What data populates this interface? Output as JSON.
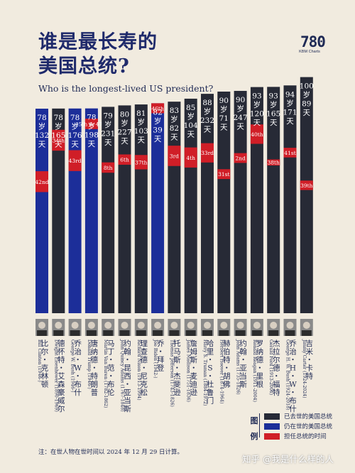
{
  "title_line1": "谁是最长寿的",
  "title_line2": "美国总统?",
  "subtitle": "Who is the longest-lived US president?",
  "logo": {
    "mark": "780",
    "text": "KBM Charts"
  },
  "legend": {
    "header": [
      "图",
      "例"
    ],
    "items": [
      {
        "label": "已去世的美国总统",
        "color": "#272a36"
      },
      {
        "label": "仍在世的美国总统",
        "color": "#1c2e99"
      },
      {
        "label": "担任总统的时间",
        "color": "#d01e27"
      }
    ]
  },
  "footnote": "注：在世人物在世时间以 2024 年 12 月 29 日计算。",
  "watermark": "知乎 @我是什么样的人",
  "colors": {
    "deceased": "#272a36",
    "living": "#1c2e99",
    "term": "#d01e27"
  },
  "chart_data": {
    "type": "bar",
    "title": "谁是最长寿的美国总统?",
    "subtitle": "Who is the longest-lived US president?",
    "value_unit": "age in years",
    "ylim": [
      70,
      101
    ],
    "categories": [
      "比尔・克林顿",
      "德怀特・艾森豪威尔",
      "乔治・W・布什",
      "唐纳德・特朗普",
      "马丁・范・布伦",
      "约翰・昆西・亚当斯",
      "理查德・尼克松",
      "乔・拜登",
      "托马斯・杰斐逊",
      "詹姆斯・麦迪逊",
      "哈里・S・杜鲁门",
      "赫伯特・胡佛",
      "约翰・亚当斯",
      "罗纳德・里根",
      "杰拉尔德・福特",
      "乔治・H・W・布什",
      "吉米・卡特"
    ],
    "english_names": [
      "Bill Clinton (1946-)",
      "Dwight Eisenhower (1890-1969)",
      "George W. Bush (1946-)",
      "Donald Trump (1946-)",
      "Martin Van Buren (1782-1862)",
      "John Quincy Adams (1767-1848)",
      "Richard Nixon (1913-1994)",
      "Joe Biden (1942-)",
      "Thomas Jefferson (1743-1826)",
      "James Madison (1751-1836)",
      "Harry S. Truman (1884-1972)",
      "Herbert Hoover (1874-1964)",
      "John Adams (1735-1826)",
      "Ronald Reagan (1911-2004)",
      "Gerald Ford (1913-2006)",
      "George H. W. Bush (1924-2018)",
      "Jimmy Carter (1924-2024)"
    ],
    "age_labels": [
      "78岁132天",
      "78岁165天",
      "78岁176天",
      "78岁198天",
      "79岁231天",
      "80岁227天",
      "81岁103天",
      "82岁39天",
      "83岁82天",
      "85岁104天",
      "88岁232天",
      "90岁71天",
      "90岁247天",
      "93岁120天",
      "93岁165天",
      "94岁171天",
      "100岁89天"
    ],
    "values": [
      78.36,
      78.45,
      78.48,
      78.54,
      79.63,
      80.62,
      81.28,
      82.11,
      83.22,
      85.28,
      88.64,
      90.19,
      90.68,
      93.33,
      93.45,
      94.47,
      100.24
    ],
    "status": [
      "living",
      "deceased",
      "living",
      "living",
      "deceased",
      "deceased",
      "deceased",
      "living",
      "deceased",
      "deceased",
      "deceased",
      "deceased",
      "deceased",
      "deceased",
      "deceased",
      "deceased",
      "deceased"
    ],
    "terms": [
      [
        {
          "label": "42nd",
          "start": 46.4,
          "end": 54.4
        }
      ],
      [
        {
          "label": "34th",
          "start": 62.3,
          "end": 70.3
        }
      ],
      [
        {
          "label": "43rd",
          "start": 54.5,
          "end": 62.5
        }
      ],
      [
        {
          "label": "45th & 47th",
          "start": 70.6,
          "end": 74.6
        },
        {
          "label": "",
          "start": 78.6,
          "end": 78.54
        }
      ],
      [
        {
          "label": "8th",
          "start": 54.2,
          "end": 58.2
        }
      ],
      [
        {
          "label": "6th",
          "start": 57.6,
          "end": 61.6
        }
      ],
      [
        {
          "label": "37th",
          "start": 56.0,
          "end": 61.6
        }
      ],
      [
        {
          "label": "46th",
          "start": 78.2,
          "end": 82.11
        }
      ],
      [
        {
          "label": "3rd",
          "start": 57.9,
          "end": 65.9
        }
      ],
      [
        {
          "label": "4th",
          "start": 57.9,
          "end": 65.9
        }
      ],
      [
        {
          "label": "33rd",
          "start": 60.9,
          "end": 68.7
        }
      ],
      [
        {
          "label": "31st",
          "start": 54.6,
          "end": 58.6
        }
      ],
      [
        {
          "label": "2nd",
          "start": 61.3,
          "end": 65.3
        }
      ],
      [
        {
          "label": "40th",
          "start": 69.9,
          "end": 77.9
        }
      ],
      [
        {
          "label": "38th",
          "start": 61.0,
          "end": 63.5
        }
      ],
      [
        {
          "label": "41st",
          "start": 64.6,
          "end": 68.6
        }
      ],
      [
        {
          "label": "39th",
          "start": 52.3,
          "end": 56.3
        }
      ]
    ],
    "grid": false,
    "legend_position": "bottom-right"
  }
}
